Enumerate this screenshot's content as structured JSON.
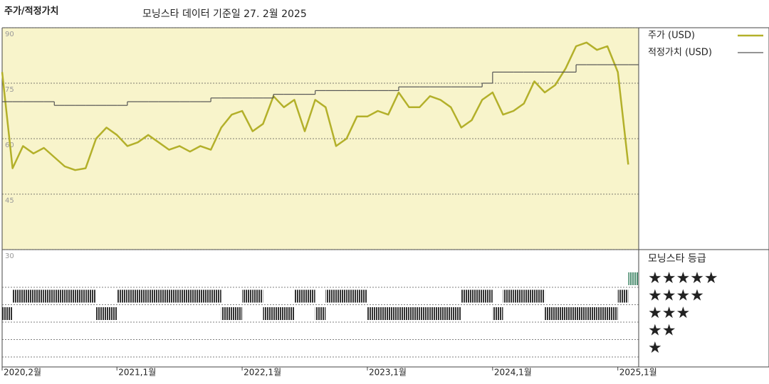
{
  "chart_data": {
    "type": "line",
    "title": "주가/적정가치",
    "subtitle": "모닝스타 데이터 기준일 27. 2월 2025",
    "x": [
      "2020-02",
      "2020-03",
      "2020-04",
      "2020-05",
      "2020-06",
      "2020-07",
      "2020-08",
      "2020-09",
      "2020-10",
      "2020-11",
      "2020-12",
      "2021-01",
      "2021-02",
      "2021-03",
      "2021-04",
      "2021-05",
      "2021-06",
      "2021-07",
      "2021-08",
      "2021-09",
      "2021-10",
      "2021-11",
      "2021-12",
      "2022-01",
      "2022-02",
      "2022-03",
      "2022-04",
      "2022-05",
      "2022-06",
      "2022-07",
      "2022-08",
      "2022-09",
      "2022-10",
      "2022-11",
      "2022-12",
      "2023-01",
      "2023-02",
      "2023-03",
      "2023-04",
      "2023-05",
      "2023-06",
      "2023-07",
      "2023-08",
      "2023-09",
      "2023-10",
      "2023-11",
      "2023-12",
      "2024-01",
      "2024-02",
      "2024-03",
      "2024-04",
      "2024-05",
      "2024-06",
      "2024-07",
      "2024-08",
      "2024-09",
      "2024-10",
      "2024-11",
      "2024-12",
      "2025-01",
      "2025-02"
    ],
    "series": [
      {
        "name": "주가 (USD)",
        "color": "#b3b02a",
        "values": [
          78,
          52,
          58,
          56,
          57.5,
          55,
          52.5,
          51.5,
          52,
          60,
          63,
          61,
          58,
          59,
          61,
          59,
          57,
          58,
          56.5,
          58,
          57,
          63,
          66.5,
          67.5,
          62,
          64,
          71.5,
          68.5,
          70.5,
          62,
          70.5,
          68.5,
          58,
          60,
          66,
          66,
          67.5,
          66.5,
          72.5,
          68.5,
          68.5,
          71.5,
          70.5,
          68.5,
          63,
          65,
          70.5,
          72.5,
          66.5,
          67.5,
          69.5,
          75.5,
          72.5,
          74.5,
          79,
          85,
          86,
          84,
          85,
          78,
          53
        ]
      },
      {
        "name": "적정가치 (USD)",
        "color": "#555555",
        "step": true,
        "values": [
          70,
          70,
          70,
          70,
          70,
          69,
          69,
          69,
          69,
          69,
          69,
          69,
          70,
          70,
          70,
          70,
          70,
          70,
          70,
          70,
          71,
          71,
          71,
          71,
          71,
          71,
          72,
          72,
          72,
          72,
          73,
          73,
          73,
          73,
          73,
          73,
          73,
          73,
          74,
          74,
          74,
          74,
          74,
          74,
          74,
          74,
          75,
          78,
          78,
          78,
          78,
          78,
          78,
          78,
          78,
          80,
          80,
          80,
          80,
          80,
          80
        ]
      }
    ],
    "xlim": [
      "2020-02",
      "2025-03"
    ],
    "xticks": [
      {
        "value": "2020-02",
        "label": "2020,2월"
      },
      {
        "value": "2021-01",
        "label": "2021,1월"
      },
      {
        "value": "2022-01",
        "label": "2022,1월"
      },
      {
        "value": "2023-01",
        "label": "2023,1월"
      },
      {
        "value": "2024-01",
        "label": "2024,1월"
      },
      {
        "value": "2025-01",
        "label": "2025,1월"
      }
    ],
    "ylim": [
      30,
      90
    ],
    "yticks": [
      30,
      45,
      60,
      75,
      90
    ],
    "grid": true,
    "background": "#f8f4cb",
    "rating": {
      "title": "모닝스타 등급",
      "levels": [
        {
          "value": 5,
          "label": "★★★★★"
        },
        {
          "value": 4,
          "label": "★★★★"
        },
        {
          "value": 3,
          "label": "★★★"
        },
        {
          "value": 2,
          "label": "★★"
        },
        {
          "value": 1,
          "label": "★"
        }
      ],
      "color": "#333333",
      "top_color": "#4f8f72",
      "values": [
        3,
        4,
        4,
        4,
        4,
        4,
        4,
        4,
        4,
        3,
        3,
        4,
        4,
        4,
        4,
        4,
        4,
        4,
        4,
        4,
        4,
        3,
        3,
        4,
        4,
        3,
        3,
        3,
        4,
        4,
        3,
        4,
        4,
        4,
        4,
        3,
        3,
        3,
        3,
        3,
        3,
        3,
        3,
        3,
        4,
        4,
        4,
        3,
        4,
        4,
        4,
        4,
        3,
        3,
        3,
        3,
        3,
        3,
        3,
        4,
        5
      ]
    }
  }
}
